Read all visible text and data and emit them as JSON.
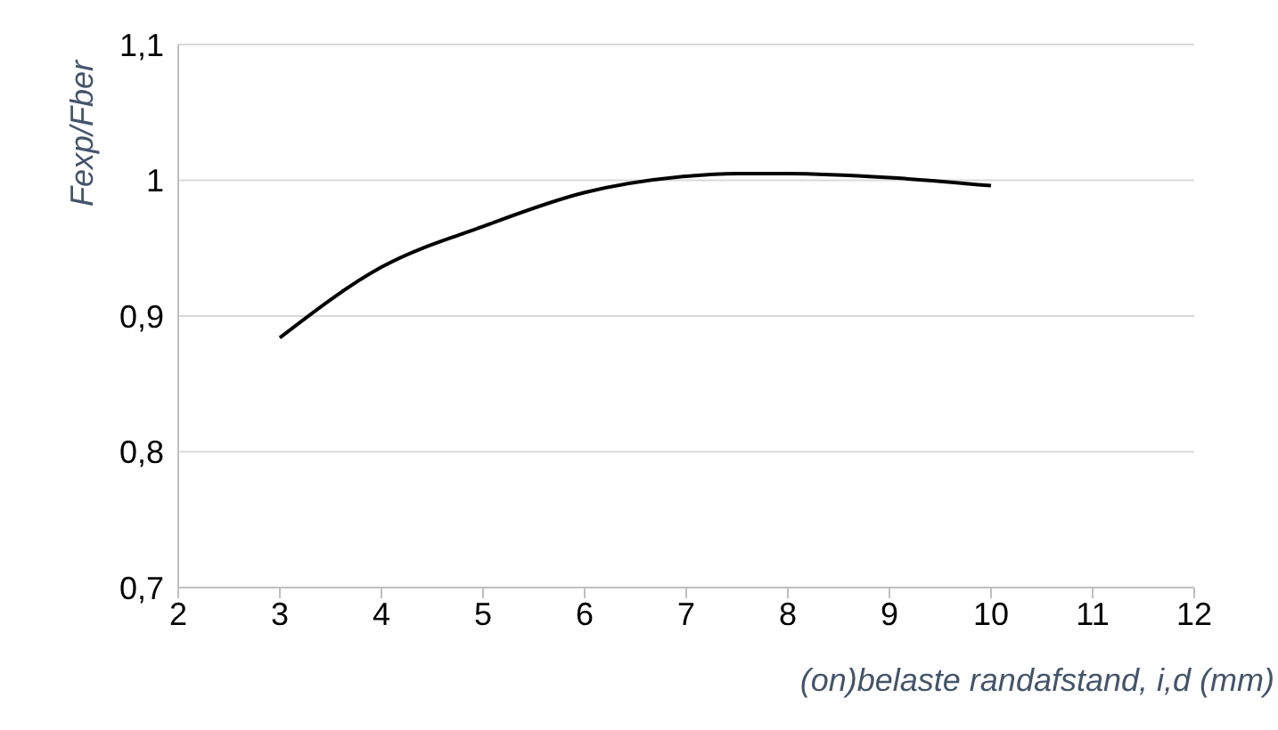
{
  "chart_data": {
    "type": "line",
    "xlabel": "(on)belaste randafstand, i,d (mm)",
    "ylabel": "Fexp/Fber",
    "x": [
      3,
      4,
      5,
      6,
      7,
      7.5,
      8,
      9,
      10
    ],
    "series": [
      {
        "color": "#000000",
        "values": [
          0.884,
          0.936,
          0.966,
          0.991,
          1.003,
          1.005,
          1.005,
          1.002,
          0.996
        ]
      }
    ],
    "xlim": [
      2,
      12
    ],
    "xticks": [
      2,
      3,
      4,
      5,
      6,
      7,
      8,
      9,
      10,
      11,
      12
    ],
    "ylim": [
      0.7,
      1.1
    ],
    "yticks": [
      {
        "value": 0.7,
        "label": "0,7"
      },
      {
        "value": 0.8,
        "label": "0,8"
      },
      {
        "value": 0.9,
        "label": "0,9"
      },
      {
        "value": 1,
        "label": "1"
      },
      {
        "value": 1.1,
        "label": "1,1"
      }
    ],
    "grid": "y",
    "marker": "none",
    "line_style": "solid",
    "legend": false
  }
}
